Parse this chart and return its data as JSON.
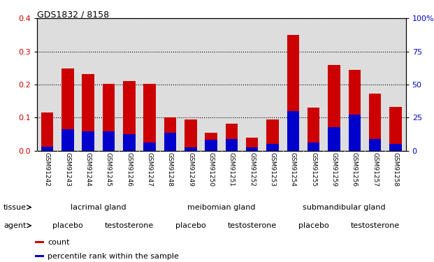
{
  "title": "GDS1832 / 8158",
  "samples": [
    "GSM91242",
    "GSM91243",
    "GSM91244",
    "GSM91245",
    "GSM91246",
    "GSM91247",
    "GSM91248",
    "GSM91249",
    "GSM91250",
    "GSM91251",
    "GSM91252",
    "GSM91253",
    "GSM91254",
    "GSM91255",
    "GSM91259",
    "GSM91256",
    "GSM91257",
    "GSM91258"
  ],
  "count_values": [
    0.115,
    0.248,
    0.232,
    0.202,
    0.21,
    0.202,
    0.1,
    0.095,
    0.055,
    0.082,
    0.04,
    0.095,
    0.35,
    0.13,
    0.258,
    0.245,
    0.172,
    0.132
  ],
  "percentile_values": [
    0.012,
    0.065,
    0.058,
    0.058,
    0.05,
    0.025,
    0.055,
    0.01,
    0.033,
    0.035,
    0.01,
    0.02,
    0.12,
    0.025,
    0.07,
    0.108,
    0.035,
    0.02
  ],
  "bar_color": "#cc0000",
  "percentile_color": "#0000cc",
  "ylim_left": [
    0,
    0.4
  ],
  "ylim_right": [
    0,
    100
  ],
  "yticks_left": [
    0,
    0.1,
    0.2,
    0.3,
    0.4
  ],
  "yticks_right": [
    0,
    25,
    50,
    75,
    100
  ],
  "tissue_groups": [
    {
      "label": "lacrimal gland",
      "start": 0,
      "end": 6,
      "color": "#ccffcc"
    },
    {
      "label": "meibomian gland",
      "start": 6,
      "end": 12,
      "color": "#66dd66"
    },
    {
      "label": "submandibular gland",
      "start": 12,
      "end": 18,
      "color": "#44cc44"
    }
  ],
  "agent_groups": [
    {
      "label": "placebo",
      "start": 0,
      "end": 3,
      "color": "#ee88ee"
    },
    {
      "label": "testosterone",
      "start": 3,
      "end": 6,
      "color": "#cc33cc"
    },
    {
      "label": "placebo",
      "start": 6,
      "end": 9,
      "color": "#ee88ee"
    },
    {
      "label": "testosterone",
      "start": 9,
      "end": 12,
      "color": "#cc33cc"
    },
    {
      "label": "placebo",
      "start": 12,
      "end": 15,
      "color": "#ee88ee"
    },
    {
      "label": "testosterone",
      "start": 15,
      "end": 18,
      "color": "#cc33cc"
    }
  ],
  "tissue_label": "tissue",
  "agent_label": "agent",
  "legend_count_label": "count",
  "legend_percentile_label": "percentile rank within the sample",
  "bar_width": 0.6,
  "tick_label_color_left": "#cc0000",
  "tick_label_color_right": "#0000cc",
  "plot_bg_color": "#dddddd",
  "label_bg_color": "#bbbbbb",
  "fig_bg_color": "#ffffff"
}
